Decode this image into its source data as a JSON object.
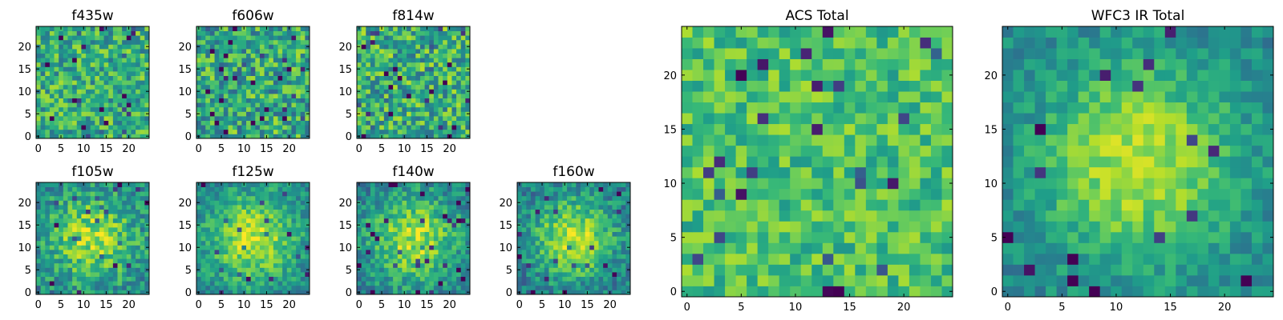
{
  "figure": {
    "description_free": true
  },
  "colors": {
    "background": "#ffffff",
    "axes_edge": "#000000",
    "colormap": "viridis"
  },
  "chart_data": [
    {
      "type": "heatmap",
      "title": "f435w",
      "colormap": "viridis",
      "grid": false,
      "xlim": [
        -0.5,
        24.5
      ],
      "ylim": [
        -0.5,
        24.5
      ],
      "xticks": [
        0,
        5,
        10,
        15,
        20
      ],
      "yticks": [
        0,
        5,
        10,
        15,
        20
      ],
      "xtick_labels": [
        "0",
        "5",
        "10",
        "15",
        "20"
      ],
      "ytick_labels": [
        "0",
        "5",
        "10",
        "15",
        "20"
      ],
      "image_shape": [
        25,
        25
      ],
      "pattern": "uniform-noise",
      "mean": 0.62,
      "spread": 0.5,
      "seed": 11
    },
    {
      "type": "heatmap",
      "title": "f606w",
      "colormap": "viridis",
      "grid": false,
      "xlim": [
        -0.5,
        24.5
      ],
      "ylim": [
        -0.5,
        24.5
      ],
      "xticks": [
        0,
        5,
        10,
        15,
        20
      ],
      "yticks": [
        0,
        5,
        10,
        15,
        20
      ],
      "xtick_labels": [
        "0",
        "5",
        "10",
        "15",
        "20"
      ],
      "ytick_labels": [
        "0",
        "5",
        "10",
        "15",
        "20"
      ],
      "image_shape": [
        25,
        25
      ],
      "pattern": "uniform-noise",
      "mean": 0.6,
      "spread": 0.55,
      "seed": 23
    },
    {
      "type": "heatmap",
      "title": "f814w",
      "colormap": "viridis",
      "grid": false,
      "xlim": [
        -0.5,
        24.5
      ],
      "ylim": [
        -0.5,
        24.5
      ],
      "xticks": [
        0,
        5,
        10,
        15,
        20
      ],
      "yticks": [
        0,
        5,
        10,
        15,
        20
      ],
      "xtick_labels": [
        "0",
        "5",
        "10",
        "15",
        "20"
      ],
      "ytick_labels": [
        "0",
        "5",
        "10",
        "15",
        "20"
      ],
      "image_shape": [
        25,
        25
      ],
      "pattern": "uniform-noise",
      "mean": 0.62,
      "spread": 0.55,
      "seed": 37
    },
    {
      "type": "heatmap",
      "title": "f105w",
      "colormap": "viridis",
      "grid": false,
      "xlim": [
        -0.5,
        24.5
      ],
      "ylim": [
        -0.5,
        24.5
      ],
      "xticks": [
        0,
        5,
        10,
        15,
        20
      ],
      "yticks": [
        0,
        5,
        10,
        15,
        20
      ],
      "xtick_labels": [
        "0",
        "5",
        "10",
        "15",
        "20"
      ],
      "ytick_labels": [
        "0",
        "5",
        "10",
        "15",
        "20"
      ],
      "image_shape": [
        25,
        25
      ],
      "pattern": "central-blob",
      "center": [
        12,
        12
      ],
      "sigma": 7,
      "amplitude": 0.4,
      "base": 0.45,
      "noise": 0.4,
      "seed": 41
    },
    {
      "type": "heatmap",
      "title": "f125w",
      "colormap": "viridis",
      "grid": false,
      "xlim": [
        -0.5,
        24.5
      ],
      "ylim": [
        -0.5,
        24.5
      ],
      "xticks": [
        0,
        5,
        10,
        15,
        20
      ],
      "yticks": [
        0,
        5,
        10,
        15,
        20
      ],
      "xtick_labels": [
        "0",
        "5",
        "10",
        "15",
        "20"
      ],
      "ytick_labels": [
        "0",
        "5",
        "10",
        "15",
        "20"
      ],
      "image_shape": [
        25,
        25
      ],
      "pattern": "central-blob",
      "center": [
        12,
        12
      ],
      "sigma": 7,
      "amplitude": 0.45,
      "base": 0.45,
      "noise": 0.32,
      "seed": 53
    },
    {
      "type": "heatmap",
      "title": "f140w",
      "colormap": "viridis",
      "grid": false,
      "xlim": [
        -0.5,
        24.5
      ],
      "ylim": [
        -0.5,
        24.5
      ],
      "xticks": [
        0,
        5,
        10,
        15,
        20
      ],
      "yticks": [
        0,
        5,
        10,
        15,
        20
      ],
      "xtick_labels": [
        "0",
        "5",
        "10",
        "15",
        "20"
      ],
      "ytick_labels": [
        "0",
        "5",
        "10",
        "15",
        "20"
      ],
      "image_shape": [
        25,
        25
      ],
      "pattern": "central-blob",
      "center": [
        12,
        12
      ],
      "sigma": 7,
      "amplitude": 0.45,
      "base": 0.42,
      "noise": 0.35,
      "seed": 67
    },
    {
      "type": "heatmap",
      "title": "f160w",
      "colormap": "viridis",
      "grid": false,
      "xlim": [
        -0.5,
        24.5
      ],
      "ylim": [
        -0.5,
        24.5
      ],
      "xticks": [
        0,
        5,
        10,
        15,
        20
      ],
      "yticks": [
        0,
        5,
        10,
        15,
        20
      ],
      "xtick_labels": [
        "0",
        "5",
        "10",
        "15",
        "20"
      ],
      "ytick_labels": [
        "0",
        "5",
        "10",
        "15",
        "20"
      ],
      "image_shape": [
        25,
        25
      ],
      "pattern": "central-blob",
      "center": [
        12,
        12
      ],
      "sigma": 6.5,
      "amplitude": 0.5,
      "base": 0.4,
      "noise": 0.35,
      "seed": 79
    },
    {
      "type": "heatmap",
      "title": "ACS Total",
      "colormap": "viridis",
      "grid": false,
      "xlim": [
        -0.5,
        24.5
      ],
      "ylim": [
        -0.5,
        24.5
      ],
      "xticks": [
        0,
        5,
        10,
        15,
        20
      ],
      "yticks": [
        0,
        5,
        10,
        15,
        20
      ],
      "xtick_labels": [
        "0",
        "5",
        "10",
        "15",
        "20"
      ],
      "ytick_labels": [
        "0",
        "5",
        "10",
        "15",
        "20"
      ],
      "image_shape": [
        25,
        25
      ],
      "pattern": "uniform-noise",
      "mean": 0.7,
      "spread": 0.35,
      "seed": 97
    },
    {
      "type": "heatmap",
      "title": "WFC3 IR Total",
      "colormap": "viridis",
      "grid": false,
      "xlim": [
        -0.5,
        24.5
      ],
      "ylim": [
        -0.5,
        24.5
      ],
      "xticks": [
        0,
        5,
        10,
        15,
        20
      ],
      "yticks": [
        0,
        5,
        10,
        15,
        20
      ],
      "xtick_labels": [
        "0",
        "5",
        "10",
        "15",
        "20"
      ],
      "ytick_labels": [
        "0",
        "5",
        "10",
        "15",
        "20"
      ],
      "image_shape": [
        25,
        25
      ],
      "pattern": "central-blob",
      "center": [
        12,
        12
      ],
      "sigma": 6.5,
      "amplitude": 0.45,
      "base": 0.45,
      "noise": 0.25,
      "seed": 113
    }
  ]
}
